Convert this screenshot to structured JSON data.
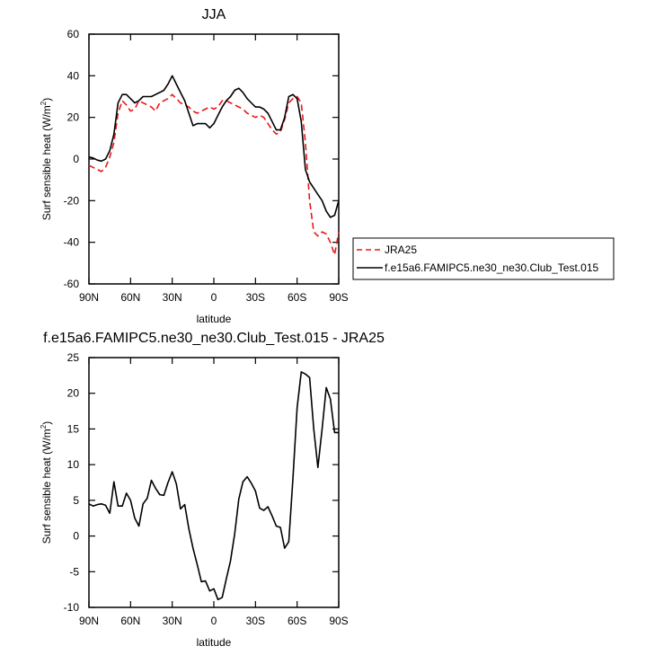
{
  "chart_data": [
    {
      "type": "line",
      "title": "JJA",
      "xlabel": "latitude",
      "ylabel": "Surf sensible heat (W/m²)",
      "ylabel_main": "Surf sensible heat (W/m",
      "ylabel_sup": "2",
      "ylabel_tail": ")",
      "xlim": [
        90,
        -90
      ],
      "ylim": [
        -60,
        60
      ],
      "xticks": [
        90,
        60,
        30,
        0,
        -30,
        -60,
        -90
      ],
      "xtick_labels": [
        "90N",
        "60N",
        "30N",
        "0",
        "30S",
        "60S",
        "90S"
      ],
      "yticks": [
        -60,
        -40,
        -20,
        0,
        20,
        40,
        60
      ],
      "ytick_labels": [
        "-60",
        "-40",
        "-20",
        "0",
        "20",
        "40",
        "60"
      ],
      "legend_position": "right",
      "series": [
        {
          "name": "JRA25",
          "color": "#e8191c",
          "dash": "dashed",
          "x": [
            90,
            87,
            84,
            81,
            78,
            75,
            72,
            69,
            66,
            63,
            60,
            57,
            54,
            51,
            48,
            45,
            42,
            39,
            36,
            33,
            30,
            27,
            24,
            21,
            18,
            15,
            12,
            9,
            6,
            3,
            0,
            -3,
            -6,
            -9,
            -12,
            -15,
            -18,
            -21,
            -24,
            -27,
            -30,
            -33,
            -36,
            -39,
            -42,
            -45,
            -48,
            -51,
            -54,
            -57,
            -60,
            -63,
            -66,
            -69,
            -72,
            -75,
            -78,
            -81,
            -84,
            -87,
            -90
          ],
          "values": [
            -3,
            -4,
            -5,
            -6,
            -4,
            1,
            8,
            22,
            28,
            26,
            23,
            24,
            28,
            27,
            26,
            25,
            23,
            27,
            28,
            29,
            31,
            29,
            27,
            26,
            25,
            23,
            22,
            23,
            24,
            25,
            24,
            25,
            28,
            28,
            27,
            26,
            25,
            24,
            22,
            21,
            20,
            21,
            20,
            17,
            14,
            12,
            13,
            19,
            27,
            29,
            30,
            27,
            8,
            -20,
            -35,
            -37,
            -35,
            -36,
            -40,
            -46,
            -35
          ]
        },
        {
          "name": "f.e15a6.FAMIPC5.ne30_ne30.Club_Test.015",
          "color": "#000000",
          "dash": "solid",
          "x": [
            90,
            87,
            84,
            81,
            78,
            75,
            72,
            69,
            66,
            63,
            60,
            57,
            54,
            51,
            48,
            45,
            42,
            39,
            36,
            33,
            30,
            27,
            24,
            21,
            18,
            15,
            12,
            9,
            6,
            3,
            0,
            -3,
            -6,
            -9,
            -12,
            -15,
            -18,
            -21,
            -24,
            -27,
            -30,
            -33,
            -36,
            -39,
            -42,
            -45,
            -48,
            -51,
            -54,
            -57,
            -60,
            -63,
            -66,
            -69,
            -72,
            -75,
            -78,
            -81,
            -84,
            -87,
            -90
          ],
          "values": [
            1,
            0.5,
            -0.5,
            -1,
            0,
            4,
            12,
            27,
            31,
            31,
            29,
            27,
            28,
            30,
            30,
            30,
            31,
            32,
            33,
            36,
            40,
            36,
            32,
            28,
            22,
            16,
            17,
            17,
            17,
            15,
            17,
            21,
            25,
            28,
            30,
            33,
            34,
            32,
            29,
            27,
            25,
            25,
            24,
            22,
            18,
            14,
            14,
            20,
            30,
            31,
            29,
            18,
            -5,
            -11,
            -14,
            -17,
            -20,
            -25,
            -28,
            -27,
            -20
          ]
        }
      ]
    },
    {
      "type": "line",
      "title": "f.e15a6.FAMIPC5.ne30_ne30.Club_Test.015 - JRA25",
      "xlabel": "latitude",
      "ylabel": "Surf sensible heat (W/m²)",
      "ylabel_main": "Surf sensible heat (W/m",
      "ylabel_sup": "2",
      "ylabel_tail": ")",
      "xlim": [
        90,
        -90
      ],
      "ylim": [
        -10,
        25
      ],
      "xticks": [
        90,
        60,
        30,
        0,
        -30,
        -60,
        -90
      ],
      "xtick_labels": [
        "90N",
        "60N",
        "30N",
        "0",
        "30S",
        "60S",
        "90S"
      ],
      "yticks": [
        -10,
        -5,
        0,
        5,
        10,
        15,
        20,
        25
      ],
      "ytick_labels": [
        "-10",
        "-5",
        "0",
        "5",
        "10",
        "15",
        "20",
        "25"
      ],
      "series": [
        {
          "color": "#000000",
          "dash": "solid",
          "x": [
            90,
            87,
            84,
            81,
            78,
            75,
            72,
            69,
            66,
            63,
            60,
            57,
            54,
            51,
            48,
            45,
            42,
            39,
            36,
            33,
            30,
            27,
            24,
            21,
            18,
            15,
            12,
            9,
            6,
            3,
            0,
            -3,
            -6,
            -9,
            -12,
            -15,
            -18,
            -21,
            -24,
            -27,
            -30,
            -33,
            -36,
            -39,
            -42,
            -45,
            -48,
            -51,
            -54,
            -57,
            -60,
            -63,
            -66,
            -69,
            -72,
            -75,
            -78,
            -81,
            -84,
            -87,
            -90
          ],
          "values": [
            4.5,
            4.2,
            4.4,
            4.5,
            4.3,
            3.2,
            7.6,
            4.2,
            4.2,
            6,
            5,
            2.5,
            1.4,
            4.5,
            5.3,
            7.8,
            6.7,
            5.8,
            5.7,
            7.5,
            9,
            7.3,
            3.8,
            4.4,
            1,
            -1.7,
            -4,
            -6.4,
            -6.3,
            -7.7,
            -7.4,
            -8.9,
            -8.6,
            -6,
            -3.5,
            0.3,
            5.2,
            7.6,
            8.3,
            7.4,
            6.3,
            3.9,
            3.6,
            4.1,
            2.8,
            1.4,
            1.2,
            -1.7,
            -0.8,
            8,
            18,
            23,
            22.7,
            22.2,
            15,
            9.6,
            15,
            20.8,
            19.2,
            14.5,
            14.5
          ]
        }
      ]
    }
  ]
}
